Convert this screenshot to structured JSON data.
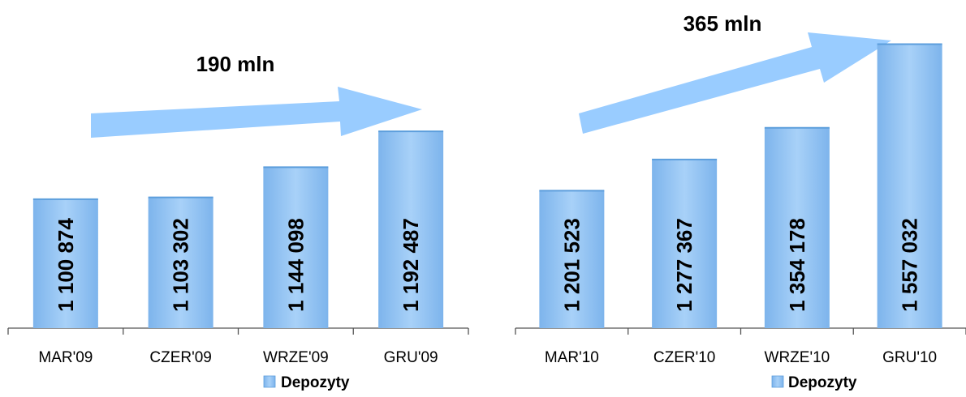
{
  "chart_data": [
    {
      "type": "bar",
      "categories": [
        "MAR'09",
        "CZER'09",
        "WRZE'09",
        "GRU'09"
      ],
      "series": [
        {
          "name": "Depozyty",
          "values": [
            1100874,
            1103302,
            1144098,
            1192487
          ]
        }
      ],
      "value_labels": [
        "1 100 874",
        "1 103 302",
        "1 144 098",
        "1 192 487"
      ],
      "annotation": "190 mln",
      "legend": "bottom",
      "grid": false
    },
    {
      "type": "bar",
      "categories": [
        "MAR'10",
        "CZER'10",
        "WRZE'10",
        "GRU'10"
      ],
      "series": [
        {
          "name": "Depozyty",
          "values": [
            1201523,
            1277367,
            1354178,
            1557032
          ]
        }
      ],
      "value_labels": [
        "1 201 523",
        "1 277 367",
        "1 354 178",
        "1 557 032"
      ],
      "annotation": "365 mln",
      "legend": "bottom",
      "grid": false
    }
  ],
  "colors": {
    "bar": "#8fc1f3",
    "bar_edge": "#5c9edc",
    "arrow": "#99ccff",
    "axis": "#555555"
  }
}
